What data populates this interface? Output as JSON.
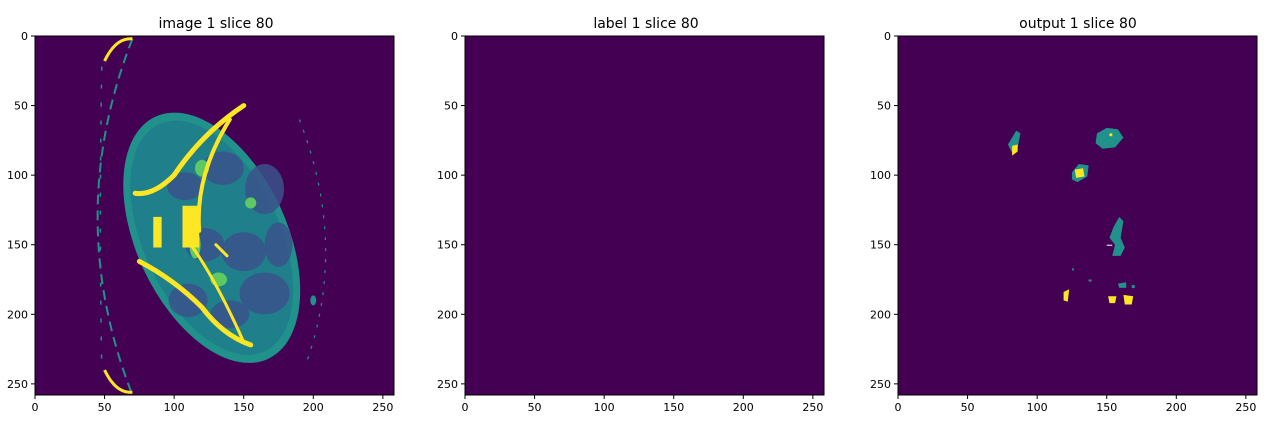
{
  "colors": {
    "background": "#440154",
    "mid": "#21918c",
    "high": "#fde725",
    "low_mid": "#3b528b",
    "light": "#5ec962"
  },
  "chart_data": [
    {
      "type": "heatmap",
      "title": "image 1 slice 80",
      "xlim": [
        0,
        258
      ],
      "ylim": [
        258,
        0
      ],
      "xticks": [
        0,
        50,
        100,
        150,
        200,
        250
      ],
      "yticks": [
        0,
        50,
        100,
        150,
        200,
        250
      ],
      "colormap": "viridis",
      "content": "axial CT slice of abdomen"
    },
    {
      "type": "heatmap",
      "title": "label 1 slice 80",
      "xlim": [
        0,
        258
      ],
      "ylim": [
        258,
        0
      ],
      "xticks": [
        0,
        50,
        100,
        150,
        200,
        250
      ],
      "yticks": [
        0,
        50,
        100,
        150,
        200,
        250
      ],
      "colormap": "viridis",
      "content": "empty (all zero)"
    },
    {
      "type": "heatmap",
      "title": "output 1 slice 80",
      "xlim": [
        0,
        258
      ],
      "ylim": [
        258,
        0
      ],
      "xticks": [
        0,
        50,
        100,
        150,
        200,
        250
      ],
      "yticks": [
        0,
        50,
        100,
        150,
        200,
        250
      ],
      "colormap": "viridis",
      "content": "segmentation blobs",
      "regions": [
        {
          "class": 1,
          "x": 84,
          "y": 77
        },
        {
          "class": 2,
          "x": 84,
          "y": 81
        },
        {
          "class": 1,
          "x": 153,
          "y": 73
        },
        {
          "class": 1,
          "x": 131,
          "y": 96
        },
        {
          "class": 2,
          "x": 130,
          "y": 99
        },
        {
          "class": 1,
          "x": 156,
          "y": 145
        },
        {
          "class": 1,
          "x": 160,
          "y": 180
        },
        {
          "class": 2,
          "x": 121,
          "y": 187
        },
        {
          "class": 2,
          "x": 154,
          "y": 189
        },
        {
          "class": 2,
          "x": 166,
          "y": 190
        }
      ]
    }
  ]
}
